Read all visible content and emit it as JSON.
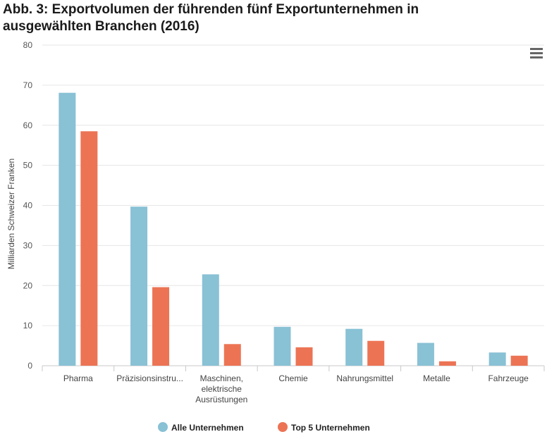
{
  "chart_data": {
    "type": "bar",
    "title": "Abb. 3: Exportvolumen der führenden fünf Exportunternehmen in ausgewählten Branchen (2016)",
    "xlabel": "",
    "ylabel": "Milliarden Schweizer Franken",
    "ylim": [
      0,
      80
    ],
    "yticks": [
      0,
      10,
      20,
      30,
      40,
      50,
      60,
      70,
      80
    ],
    "grid": true,
    "legend_position": "bottom-center",
    "categories": [
      "Pharma",
      "Präzisionsinstru...",
      "Maschinen, elektrische Ausrüstungen",
      "Chemie",
      "Nahrungsmittel",
      "Metalle",
      "Fahrzeuge"
    ],
    "series": [
      {
        "name": "Alle Unternehmen",
        "color": "#89c1d5",
        "values": [
          68.1,
          39.7,
          22.8,
          9.7,
          9.2,
          5.7,
          3.3
        ]
      },
      {
        "name": "Top 5 Unternehmen",
        "color": "#ec7455",
        "values": [
          58.5,
          19.6,
          5.4,
          4.6,
          6.2,
          1.1,
          2.5
        ]
      }
    ]
  },
  "menu_icon": "hamburger-menu-icon"
}
